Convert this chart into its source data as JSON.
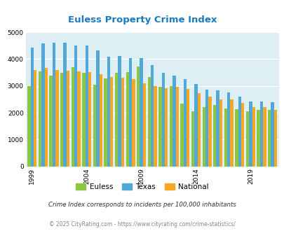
{
  "title": "Euless Property Crime Index",
  "years": [
    1999,
    2000,
    2001,
    2002,
    2003,
    2004,
    2005,
    2006,
    2007,
    2008,
    2009,
    2010,
    2011,
    2012,
    2013,
    2014,
    2015,
    2016,
    2017,
    2018,
    2019,
    2020,
    2021
  ],
  "euless": [
    3000,
    3550,
    3380,
    3500,
    3700,
    3500,
    3050,
    3270,
    3480,
    3520,
    3720,
    3340,
    2970,
    3000,
    2330,
    2050,
    2220,
    2300,
    2150,
    2130,
    2050,
    2110,
    2100
  ],
  "texas": [
    4420,
    4590,
    4610,
    4620,
    4500,
    4510,
    4320,
    4100,
    4130,
    4030,
    4050,
    3780,
    3490,
    3380,
    3250,
    3060,
    2870,
    2830,
    2770,
    2590,
    2430,
    2410,
    2400
  ],
  "national": [
    3600,
    3660,
    3600,
    3580,
    3540,
    3510,
    3450,
    3340,
    3310,
    3250,
    3100,
    2990,
    2920,
    2960,
    2880,
    2740,
    2610,
    2510,
    2490,
    2360,
    2210,
    2200,
    2110
  ],
  "euless_color": "#8dc63f",
  "texas_color": "#4fa8d8",
  "national_color": "#f5a623",
  "bg_color": "#ddeef5",
  "grid_color": "#ffffff",
  "ylim": [
    0,
    5000
  ],
  "yticks": [
    0,
    1000,
    2000,
    3000,
    4000,
    5000
  ],
  "xtick_years": [
    1999,
    2004,
    2009,
    2014,
    2019
  ],
  "footnote1": "Crime Index corresponds to incidents per 100,000 inhabitants",
  "footnote2": "© 2025 CityRating.com - https://www.cityrating.com/crime-statistics/",
  "legend_labels": [
    "Euless",
    "Texas",
    "National"
  ],
  "bar_width": 0.28
}
